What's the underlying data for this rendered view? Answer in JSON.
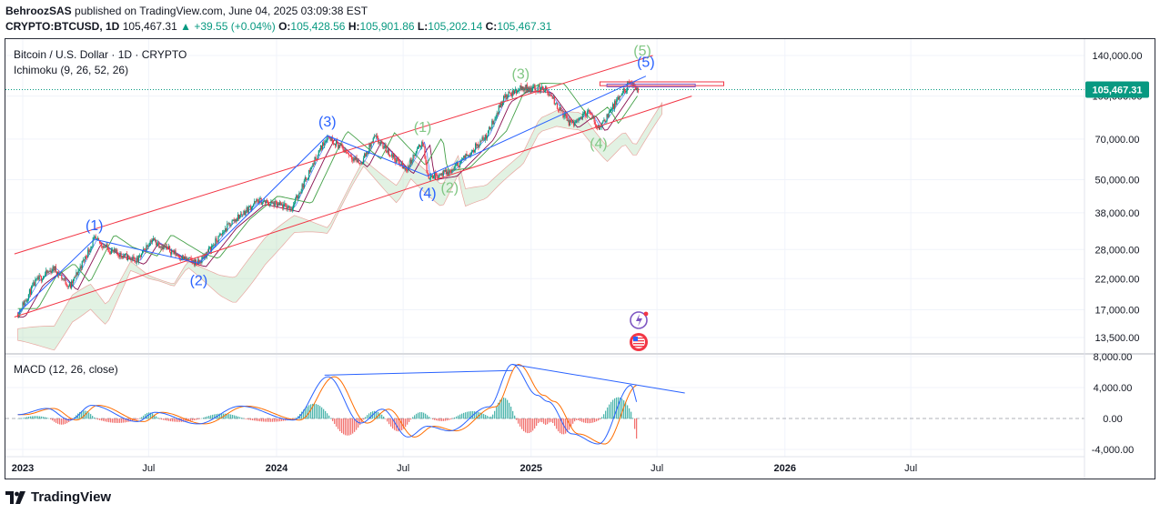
{
  "header": {
    "author": "BehroozSAS",
    "published_text": "published on TradingView.com, June 04, 2025 03:09:38 EST",
    "symbol": "CRYPTO:BTCUSD, 1D",
    "price": "105,467.31",
    "change": "+39.55 (+0.04%)",
    "open_label": "O:",
    "open": "105,428.56",
    "high_label": "H:",
    "high": "105,901.86",
    "low_label": "L:",
    "low": "105,202.14",
    "close_label": "C:",
    "close": "105,467.31"
  },
  "legend": {
    "title": "Bitcoin / U.S. Dollar · 1D · CRYPTO",
    "ichimoku": "Ichimoku (9, 26, 52, 26)",
    "macd": "MACD (12, 26, close)"
  },
  "brand": {
    "name": "TradingView"
  },
  "colors": {
    "channel": "#f23645",
    "wave_blue": "#2962ff",
    "wave_green": "#81c784",
    "candle_up": "#089981",
    "candle_down": "#f23645",
    "price_tag": "#089981",
    "macd_line": "#2962ff",
    "signal_line": "#ff6d00"
  },
  "chart_data": [
    {
      "type": "line",
      "name_hint": "price panel (log scale)",
      "scale": "log",
      "y_tick_labels": [
        "140,000.00",
        "100,000.00",
        "70,000.00",
        "50,000.00",
        "38,000.00",
        "28,000.00",
        "22,000.00",
        "17,000.00",
        "13,500.00"
      ],
      "y_ticks": [
        140000,
        100000,
        70000,
        50000,
        38000,
        28000,
        22000,
        17000,
        13500
      ],
      "x_tick_labels": [
        "2023",
        "Jul",
        "2024",
        "Jul",
        "2025",
        "Jul",
        "2026",
        "Jul"
      ],
      "x_ticks": [
        "2023-01",
        "2023-07",
        "2024-01",
        "2024-07",
        "2025-01",
        "2025-07",
        "2026-01",
        "2026-07"
      ],
      "current_price_label": "105,467.31",
      "current_price": 105467.31,
      "price_path": [
        [
          "2022-12-25",
          16500
        ],
        [
          "2023-01-20",
          21500
        ],
        [
          "2023-02-15",
          24000
        ],
        [
          "2023-03-10",
          20500
        ],
        [
          "2023-04-14",
          30500
        ],
        [
          "2023-05-10",
          27500
        ],
        [
          "2023-06-15",
          25500
        ],
        [
          "2023-07-05",
          30500
        ],
        [
          "2023-08-20",
          26000
        ],
        [
          "2023-09-11",
          25000
        ],
        [
          "2023-10-25",
          34500
        ],
        [
          "2023-12-05",
          42000
        ],
        [
          "2024-01-23",
          39500
        ],
        [
          "2024-02-28",
          61000
        ],
        [
          "2024-03-14",
          72000
        ],
        [
          "2024-05-01",
          57000
        ],
        [
          "2024-05-21",
          71000
        ],
        [
          "2024-07-05",
          54000
        ],
        [
          "2024-07-29",
          69000
        ],
        [
          "2024-08-05",
          51500
        ],
        [
          "2024-09-06",
          53000
        ],
        [
          "2024-10-29",
          72000
        ],
        [
          "2024-11-22",
          98000
        ],
        [
          "2024-12-17",
          107000
        ],
        [
          "2025-01-20",
          106500
        ],
        [
          "2025-02-27",
          79000
        ],
        [
          "2025-03-24",
          88000
        ],
        [
          "2025-04-08",
          76500
        ],
        [
          "2025-05-22",
          111000
        ],
        [
          "2025-06-04",
          105467
        ]
      ],
      "elliott_waves_primary": [
        {
          "label": "(1)",
          "date": "2023-04-14",
          "value": 30500
        },
        {
          "label": "(2)",
          "date": "2023-09-11",
          "value": 25000
        },
        {
          "label": "(3)",
          "date": "2024-03-14",
          "value": 72000
        },
        {
          "label": "(4)",
          "date": "2024-08-05",
          "value": 51500
        },
        {
          "label": "(5)",
          "date": "2025-06-15",
          "value": 118000
        }
      ],
      "elliott_waves_minor": [
        {
          "label": "(1)",
          "date": "2024-07-29",
          "value": 69000
        },
        {
          "label": "(2)",
          "date": "2024-09-06",
          "value": 53000
        },
        {
          "label": "(3)",
          "date": "2024-12-17",
          "value": 107000
        },
        {
          "label": "(4)",
          "date": "2025-04-08",
          "value": 76500
        },
        {
          "label": "(5)",
          "date": "2025-06-10",
          "value": 130000
        }
      ],
      "channel_upper": [
        [
          "2022-12-20",
          27000
        ],
        [
          "2025-06-25",
          140000
        ]
      ],
      "channel_lower": [
        [
          "2022-12-20",
          16000
        ],
        [
          "2025-08-20",
          100000
        ]
      ],
      "resistance_boxes": [
        {
          "from": "2025-04-10",
          "to": "2025-10-05",
          "low": 109000,
          "high": 112500
        },
        {
          "from": "2025-04-20",
          "to": "2025-08-25",
          "low": 108000,
          "high": 110500
        }
      ]
    },
    {
      "type": "line",
      "name_hint": "MACD panel",
      "y_tick_labels": [
        "8,000.00",
        "4,000.00",
        "0.00",
        "-4,000.00"
      ],
      "y_ticks": [
        8000,
        4000,
        0,
        -4000
      ],
      "macd_path": [
        [
          "2022-12-25",
          500
        ],
        [
          "2023-02-05",
          1300
        ],
        [
          "2023-03-10",
          -200
        ],
        [
          "2023-04-10",
          1700
        ],
        [
          "2023-06-15",
          -400
        ],
        [
          "2023-07-10",
          800
        ],
        [
          "2023-09-10",
          -700
        ],
        [
          "2023-11-10",
          1600
        ],
        [
          "2024-01-25",
          -200
        ],
        [
          "2024-03-15",
          5400
        ],
        [
          "2024-05-01",
          -600
        ],
        [
          "2024-06-01",
          1200
        ],
        [
          "2024-07-08",
          -2400
        ],
        [
          "2024-08-05",
          -1000
        ],
        [
          "2024-09-06",
          -1600
        ],
        [
          "2024-11-01",
          1500
        ],
        [
          "2024-12-05",
          7000
        ],
        [
          "2025-01-10",
          3000
        ],
        [
          "2025-01-25",
          2200
        ],
        [
          "2025-03-01",
          -2000
        ],
        [
          "2025-04-08",
          -3300
        ],
        [
          "2025-05-25",
          4300
        ],
        [
          "2025-06-04",
          1800
        ]
      ],
      "divergence_lines": [
        [
          [
            "2024-03-10",
            5600
          ],
          [
            "2024-12-05",
            6200
          ]
        ],
        [
          [
            "2024-12-05",
            7000
          ],
          [
            "2025-08-10",
            3300
          ]
        ]
      ]
    }
  ]
}
